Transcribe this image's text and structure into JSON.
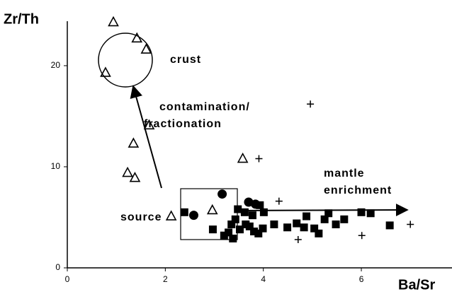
{
  "chart_data": {
    "type": "scatter",
    "y_label": "Zr/Th",
    "x_label": "Ba/Sr",
    "xlim": [
      0,
      7.85
    ],
    "ylim": [
      0,
      24.4
    ],
    "xticks": [
      0,
      2,
      4,
      6
    ],
    "yticks": [
      0,
      10,
      20
    ],
    "annotations": [
      "crust",
      "contamination/",
      "fractionation",
      "mantle",
      "enrichment",
      "source"
    ],
    "series": [
      {
        "marker": "triangle",
        "color": "#000000",
        "x": [
          0.94,
          1.42,
          1.61,
          0.78,
          1.67,
          1.35,
          1.23,
          1.38,
          2.12,
          2.96,
          3.58
        ],
        "values": [
          24.3,
          22.7,
          21.6,
          19.3,
          14.1,
          12.3,
          9.4,
          8.9,
          5.1,
          5.7,
          10.8
        ]
      },
      {
        "marker": "plus",
        "color": "#000000",
        "x": [
          4.96,
          3.91,
          4.32,
          4.71,
          6.01,
          7.0
        ],
        "values": [
          16.2,
          10.8,
          6.6,
          2.8,
          3.2,
          4.3
        ]
      },
      {
        "marker": "circle",
        "color": "#000000",
        "x": [
          2.58,
          3.16,
          3.7,
          3.84
        ],
        "values": [
          5.2,
          7.3,
          6.5,
          6.3
        ]
      },
      {
        "marker": "square",
        "color": "#000000",
        "x": [
          2.39,
          2.97,
          3.2,
          3.29,
          3.38,
          3.35,
          3.43,
          3.52,
          3.48,
          3.62,
          3.64,
          3.72,
          3.81,
          3.78,
          3.9,
          3.99,
          4.01,
          3.93,
          4.22,
          4.49,
          4.68,
          4.83,
          4.88,
          5.04,
          5.13,
          5.25,
          5.33,
          5.48,
          5.65,
          6.0,
          6.19,
          6.58
        ],
        "values": [
          5.5,
          3.8,
          3.2,
          3.5,
          2.9,
          4.3,
          4.8,
          3.8,
          5.8,
          5.5,
          4.3,
          4.1,
          3.6,
          5.2,
          3.4,
          3.9,
          5.5,
          6.2,
          4.3,
          4.0,
          4.4,
          4.0,
          5.1,
          3.9,
          3.4,
          4.8,
          5.4,
          4.3,
          4.8,
          5.5,
          5.4,
          4.2
        ]
      }
    ]
  }
}
